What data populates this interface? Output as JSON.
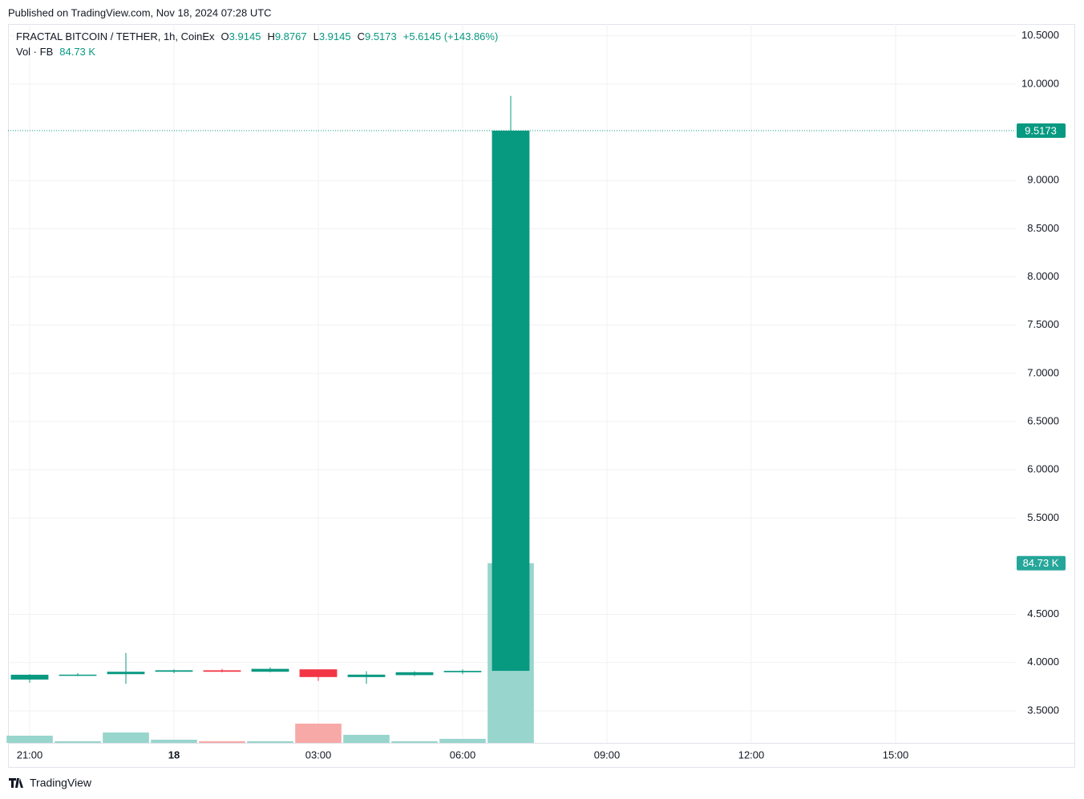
{
  "header": {
    "published": "Published on TradingView.com, Nov 18, 2024 07:28 UTC",
    "brand": "TradingView"
  },
  "chart_data": {
    "type": "candlestick",
    "title": "FRACTAL BITCOIN / TETHER, 1h, CoinEx",
    "ohlc_labels": [
      "O",
      "H",
      "L",
      "C"
    ],
    "change": "+5.6145 (+143.86%)",
    "volume_title": "Vol · FB",
    "x": [
      0,
      1,
      2,
      3,
      4,
      5,
      6,
      7,
      8,
      9,
      10
    ],
    "open": [
      3.824,
      3.87,
      3.88,
      3.905,
      3.92,
      3.905,
      3.93,
      3.85,
      3.87,
      3.9,
      3.9145
    ],
    "high": [
      3.88,
      3.89,
      4.1,
      3.93,
      3.935,
      3.95,
      3.93,
      3.91,
      3.91,
      3.93,
      9.8767
    ],
    "low": [
      3.79,
      3.86,
      3.78,
      3.89,
      3.9,
      3.9,
      3.81,
      3.78,
      3.86,
      3.88,
      3.9145
    ],
    "close": [
      3.874,
      3.875,
      3.905,
      3.92,
      3.905,
      3.935,
      3.85,
      3.875,
      3.9,
      3.914,
      9.5173
    ],
    "volume": [
      3.4,
      0.8,
      4.9,
      1.5,
      0.8,
      0.8,
      9.1,
      3.8,
      0.8,
      1.9,
      84.73
    ],
    "volume_labels": [
      null,
      null,
      null,
      null,
      null,
      null,
      null,
      null,
      null,
      null,
      "84.73 K"
    ],
    "up_color": "#089981",
    "down_color": "#f23645",
    "volume_up_color": "#98d5cc",
    "volume_down_color": "#f7a9a7",
    "xlim": [
      -0.45,
      20.5
    ],
    "xticks": [
      {
        "value": 0,
        "label": "21:00"
      },
      {
        "value": 3,
        "label": "18"
      },
      {
        "value": 6,
        "label": "03:00"
      },
      {
        "value": 9,
        "label": "06:00"
      },
      {
        "value": 12,
        "label": "09:00"
      },
      {
        "value": 15,
        "label": "12:00"
      },
      {
        "value": 18,
        "label": "15:00"
      }
    ],
    "ylim": [
      3.167,
      10.623
    ],
    "yticks": [
      {
        "value": 3.5,
        "label": "3.5000"
      },
      {
        "value": 4,
        "label": "4.0000"
      },
      {
        "value": 4.5,
        "label": "4.5000"
      },
      {
        "value": 5.5,
        "label": "5.5000"
      },
      {
        "value": 6,
        "label": "6.0000"
      },
      {
        "value": 6.5,
        "label": "6.5000"
      },
      {
        "value": 7,
        "label": "7.0000"
      },
      {
        "value": 7.5,
        "label": "7.5000"
      },
      {
        "value": 8,
        "label": "8.0000"
      },
      {
        "value": 8.5,
        "label": "8.5000"
      },
      {
        "value": 9,
        "label": "9.0000"
      },
      {
        "value": 10,
        "label": "10.0000"
      },
      {
        "value": 10.5,
        "label": "10.5000"
      }
    ],
    "grid": true
  }
}
